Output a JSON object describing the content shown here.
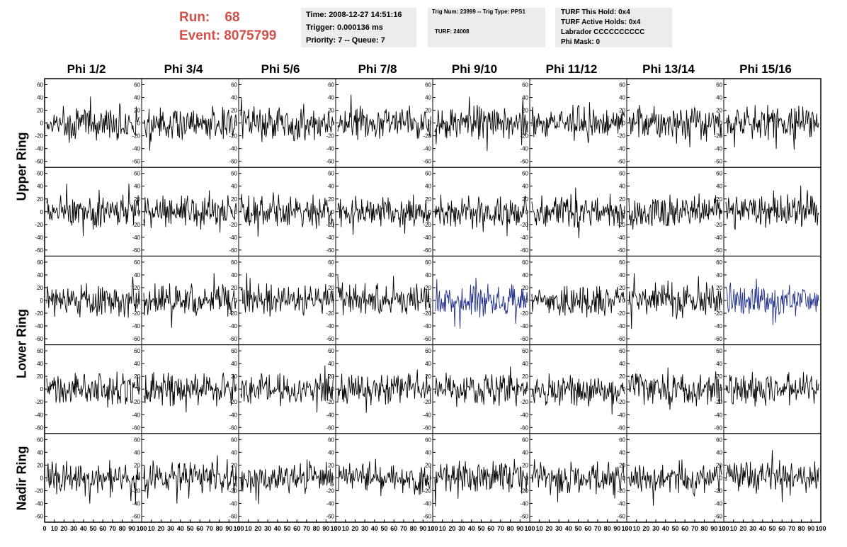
{
  "header": {
    "run_label": "Run:",
    "run_value": "68",
    "event_label": "Event:",
    "event_value": "8075799"
  },
  "info_box_1": {
    "time": "Time: 2008-12-27 14:51:16",
    "trigger": "Trigger: 0.000136 ms",
    "priority": "Priority: 7 -- Queue: 7"
  },
  "info_box_2": {
    "trig": "Trig Num: 23999 -- Trig Type: PPS1",
    "turf": "TURF: 24008"
  },
  "info_box_3": {
    "hold": "TURF This Hold: 0x4",
    "active": "TURF Active Holds: 0x4",
    "labrador": "Labrador CCCCCCCCCC",
    "phi_mask": "Phi Mask: 0"
  },
  "columns": [
    "Phi 1/2",
    "Phi 3/4",
    "Phi 5/6",
    "Phi 7/8",
    "Phi 9/10",
    "Phi 11/12",
    "Phi 13/14",
    "Phi 15/16"
  ],
  "rings": [
    "Upper Ring",
    "Lower Ring",
    "Nadir Ring"
  ],
  "colors": {
    "background": "#ffffff",
    "header_text": "#d0504a",
    "info_box_bg": "#ececec",
    "trace_default": "#000000",
    "trace_highlight": "#1f2f8a"
  },
  "chart_data": {
    "type": "line",
    "rows": 5,
    "cols": 8,
    "ylim": [
      -65,
      65
    ],
    "y_ticks": [
      -60,
      -40,
      -20,
      0,
      20,
      40,
      60
    ],
    "xlim": [
      0,
      100
    ],
    "x_ticks": [
      0,
      10,
      20,
      30,
      40,
      50,
      60,
      70,
      80,
      90,
      100
    ],
    "highlighted_panels": [
      [
        2,
        4
      ],
      [
        2,
        7
      ]
    ]
  }
}
